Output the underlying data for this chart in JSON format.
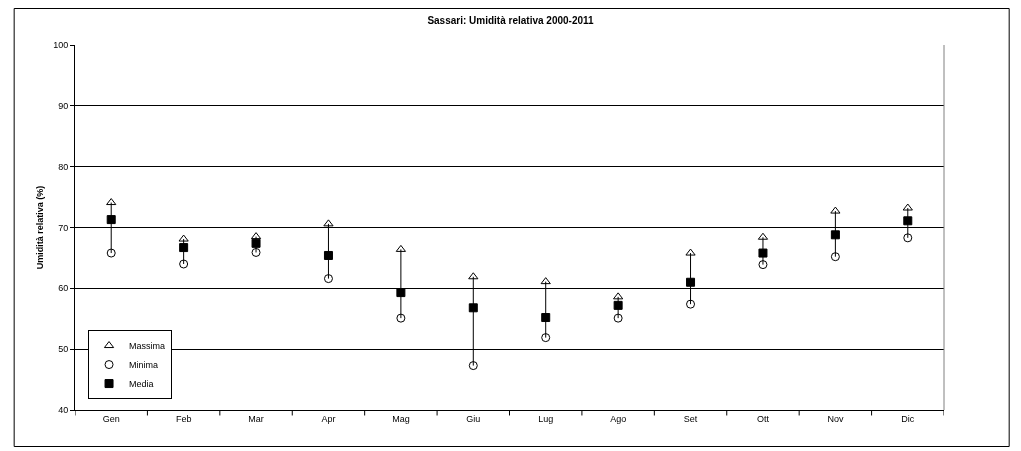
{
  "chart_data": {
    "type": "scatter",
    "title": "Sassari: Umidità relativa 2000-2011",
    "ylabel": "Umidità relativa (%)",
    "categories": [
      "Gen",
      "Feb",
      "Mar",
      "Apr",
      "Mag",
      "Giu",
      "Lug",
      "Ago",
      "Set",
      "Ott",
      "Nov",
      "Dic"
    ],
    "series": [
      {
        "name": "Massima",
        "color": "#000000",
        "marker": "triangle",
        "values": [
          74.1,
          68.1,
          68.5,
          70.6,
          66.4,
          61.9,
          61.1,
          58.6,
          65.8,
          68.4,
          72.7,
          73.2
        ]
      },
      {
        "name": "Minima",
        "color": "#000000",
        "marker": "circle",
        "values": [
          65.8,
          64.0,
          65.9,
          61.6,
          55.1,
          47.3,
          51.9,
          55.1,
          57.4,
          63.9,
          65.2,
          68.3
        ]
      },
      {
        "name": "Media",
        "color": "#000000",
        "marker": "square",
        "values": [
          71.3,
          66.7,
          67.4,
          65.4,
          59.3,
          56.8,
          55.2,
          57.2,
          61.0,
          65.8,
          68.8,
          71.1
        ]
      }
    ],
    "ylim": [
      40,
      100
    ],
    "yticks": [
      40,
      50,
      60,
      70,
      80,
      90,
      100
    ],
    "grid": "y",
    "legend": "bottom left"
  }
}
